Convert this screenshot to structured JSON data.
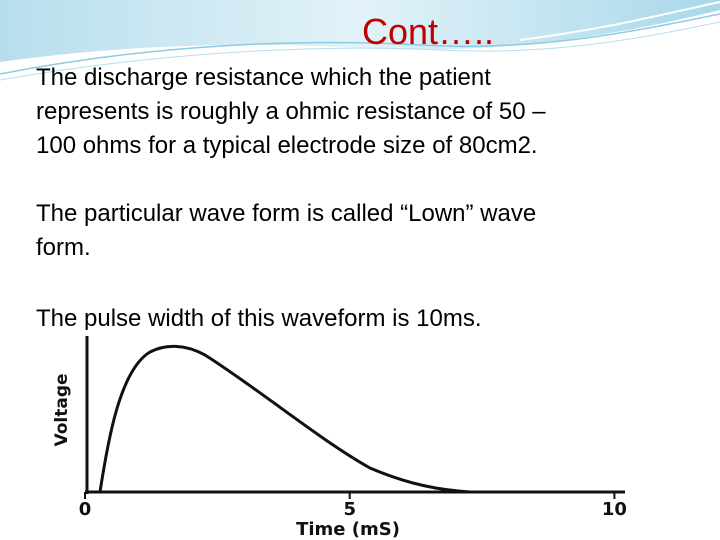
{
  "header": {
    "title": "Cont….."
  },
  "body": {
    "paragraphs": [
      [
        "The discharge resistance which the patient",
        "represents is roughly a ohmic resistance of 50 –",
        "100 ohms for a typical electrode size of 80cm2."
      ],
      [
        "The particular wave form is called “Lown” wave",
        "form."
      ],
      [
        "The pulse width of this waveform is 10ms."
      ]
    ]
  },
  "figure": {
    "ylabel": "Voltage",
    "xlabel": "Time (mS)",
    "xlim": [
      0,
      10.2
    ],
    "xticks": [
      0,
      5,
      10
    ]
  }
}
